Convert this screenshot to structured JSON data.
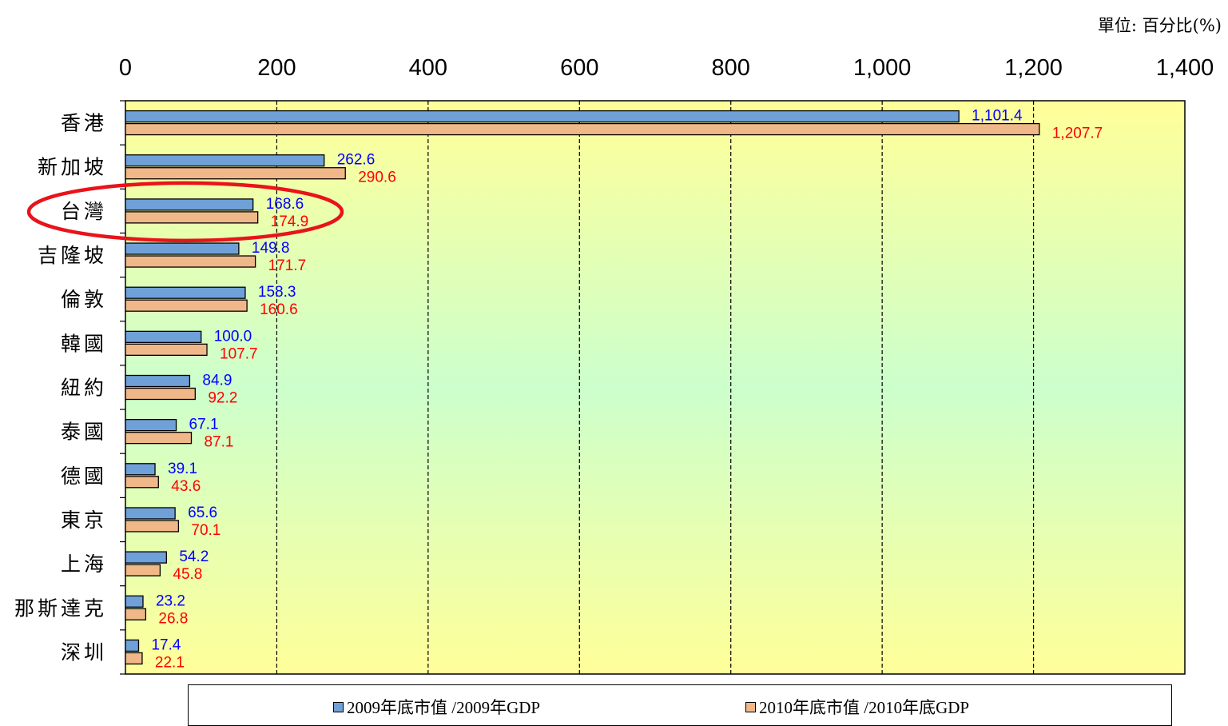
{
  "unit_label": "單位: 百分比(%)",
  "colors": {
    "series_2009": "#6fa0d8",
    "series_2010": "#f0b889",
    "label_2009": "#0000ff",
    "label_2010": "#ff0000",
    "highlight_ellipse": "#e8131b",
    "plot_bg_top": "#ffff99",
    "plot_bg_mid": "#ccffcc"
  },
  "highlight_category": "台灣",
  "chart_data": {
    "type": "bar",
    "orientation": "horizontal",
    "categories": [
      "香港",
      "新加坡",
      "台灣",
      "吉隆坡",
      "倫敦",
      "韓國",
      "紐約",
      "泰國",
      "德國",
      "東京",
      "上海",
      "那斯達克",
      "深圳"
    ],
    "series": [
      {
        "name": "2009年底市值 /2009年GDP",
        "values": [
          1101.4,
          262.6,
          168.6,
          149.8,
          158.3,
          100.0,
          84.9,
          67.1,
          39.1,
          65.6,
          54.2,
          23.2,
          17.4
        ],
        "labels": [
          "1,101.4",
          "262.6",
          "168.6",
          "149.8",
          "158.3",
          "100.0",
          "84.9",
          "67.1",
          "39.1",
          "65.6",
          "54.2",
          "23.2",
          "17.4"
        ]
      },
      {
        "name": "2010年底市值 /2010年底GDP",
        "values": [
          1207.7,
          290.6,
          174.9,
          171.7,
          160.6,
          107.7,
          92.2,
          87.1,
          43.6,
          70.1,
          45.8,
          26.8,
          22.1
        ],
        "labels": [
          "1,207.7",
          "290.6",
          "174.9",
          "171.7",
          "160.6",
          "107.7",
          "92.2",
          "87.1",
          "43.6",
          "70.1",
          "45.8",
          "26.8",
          "22.1"
        ]
      }
    ],
    "xlim": [
      0,
      1400
    ],
    "x_ticks": [
      0,
      200,
      400,
      600,
      800,
      1000,
      1200,
      1400
    ],
    "x_tick_labels": [
      "0",
      "200",
      "400",
      "600",
      "800",
      "1,000",
      "1,200",
      "1,400"
    ],
    "x_axis_position": "top",
    "grid": "vertical dashed",
    "legend_position": "bottom"
  }
}
